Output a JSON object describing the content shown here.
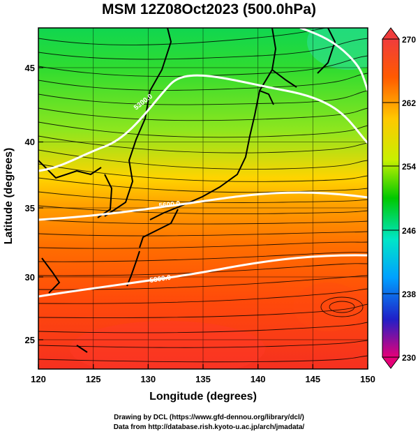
{
  "title": "MSM 12Z08Oct2023 (500.0hPa)",
  "axes": {
    "xlabel": "Longitude (degrees)",
    "ylabel": "Latitude  (degrees)",
    "x_ticks": [
      "120",
      "125",
      "130",
      "135",
      "140",
      "145",
      "150"
    ],
    "y_ticks": [
      "25",
      "30",
      "35",
      "40",
      "45"
    ]
  },
  "colorbar": {
    "ticks": [
      "270",
      "262",
      "254",
      "246",
      "238",
      "230"
    ],
    "colors": [
      "#e60078",
      "#2020c8",
      "#00a0ff",
      "#00e6c8",
      "#00c800",
      "#c8f000",
      "#ffc800",
      "#ff5a00",
      "#f03c3c"
    ]
  },
  "contours": [
    {
      "label": "5300.0"
    },
    {
      "label": "5600.0"
    },
    {
      "label": "5800.0"
    }
  ],
  "credits": {
    "line1": "Drawing by DCL (https://www.gfd-dennou.org/library/dcl/)",
    "line2": "Data from http://database.rish.kyoto-u.ac.jp/arch/jmadata/"
  }
}
